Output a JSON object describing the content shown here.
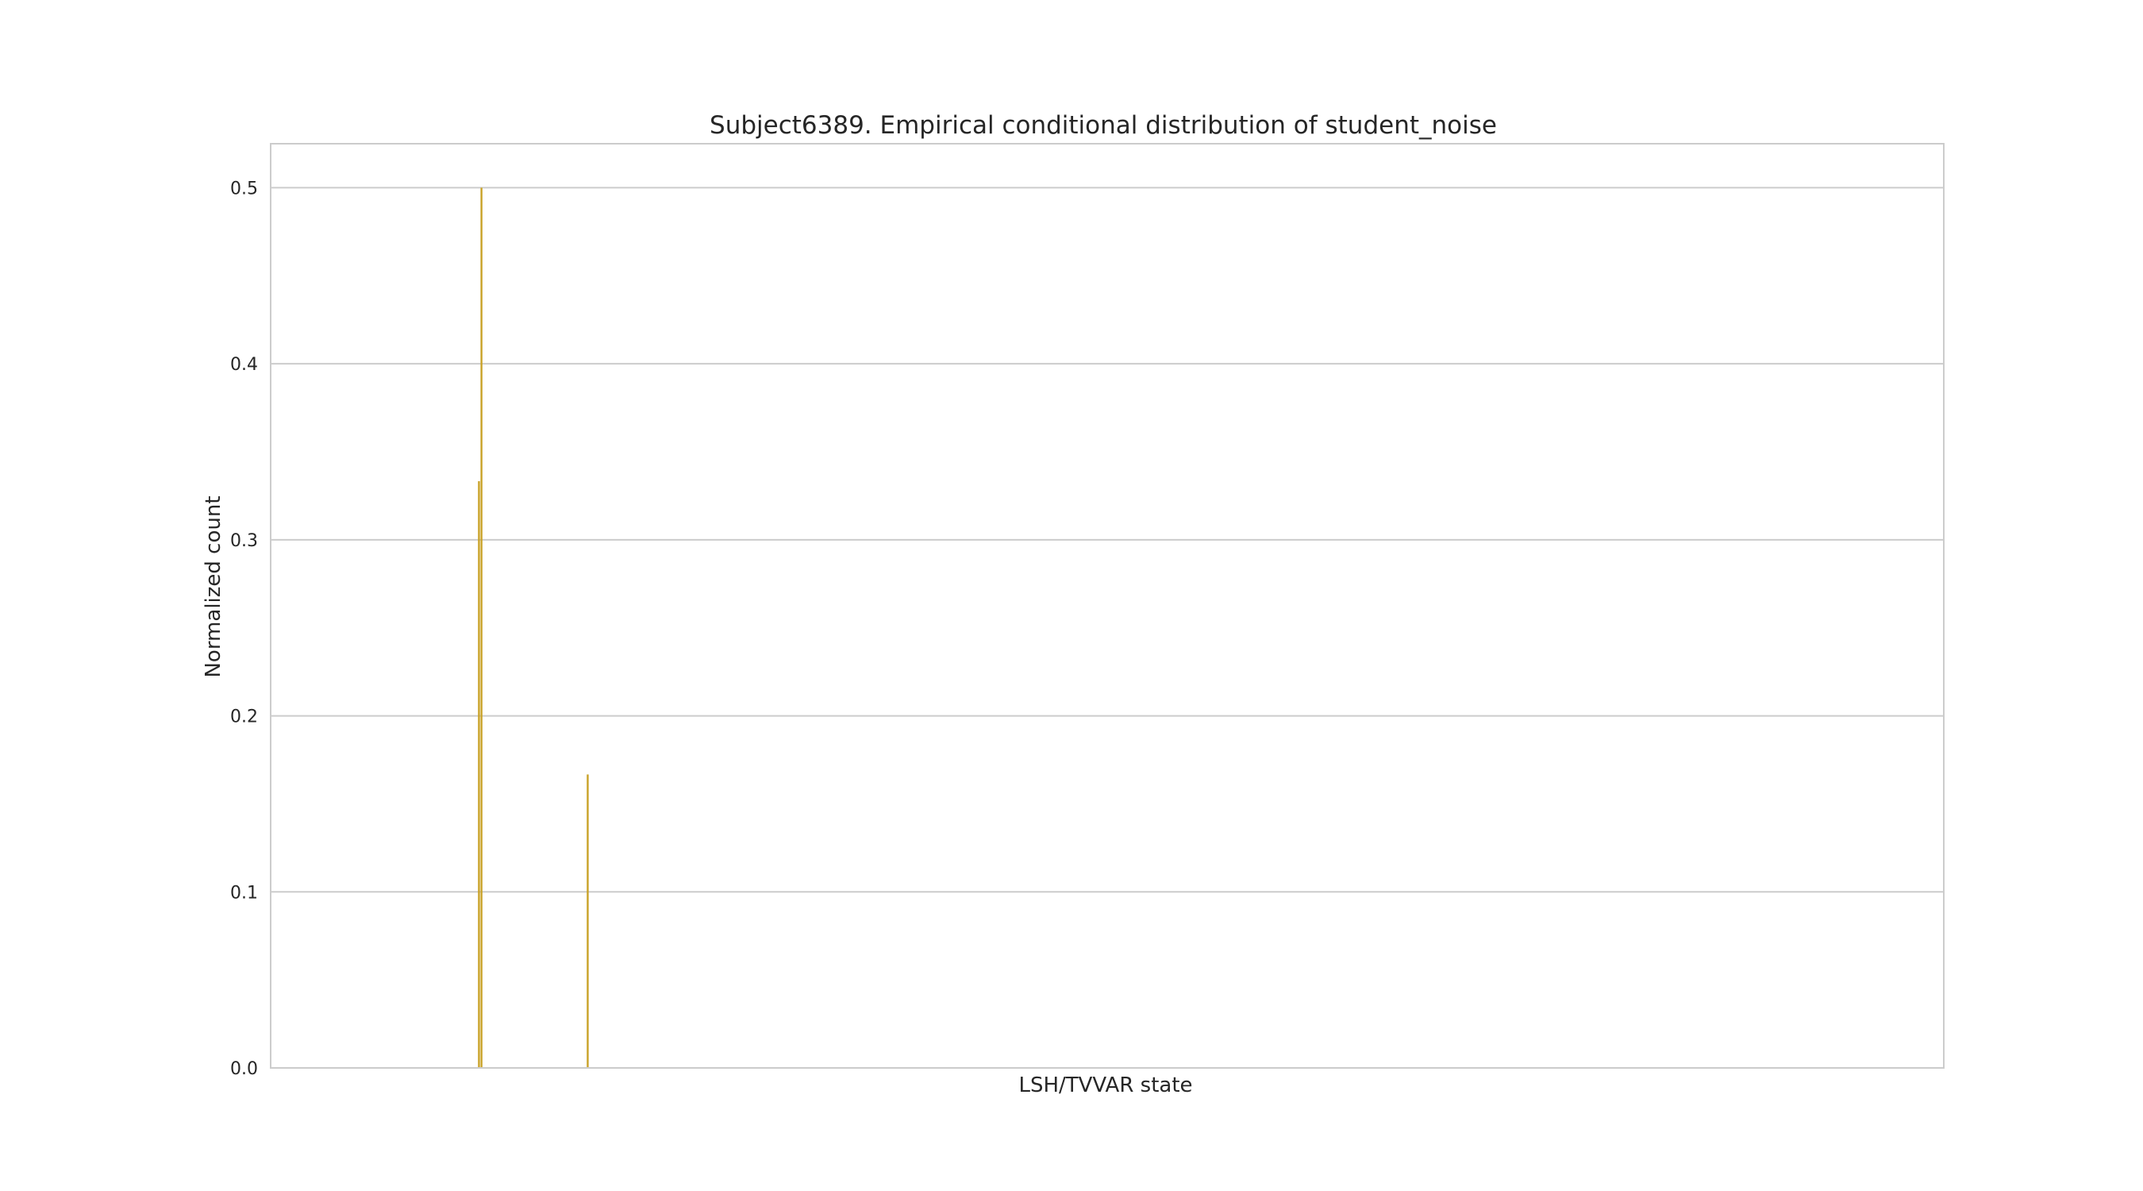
{
  "chart_data": {
    "type": "bar",
    "title": "Subject6389. Empirical conditional distribution of student_noise",
    "xlabel": "LSH/TVVAR state",
    "ylabel": "Normalized count",
    "ylim": [
      0,
      0.525
    ],
    "yticks": [
      "0.0",
      "0.1",
      "0.2",
      "0.3",
      "0.4",
      "0.5"
    ],
    "xlim": [
      0,
      100
    ],
    "grid": true,
    "bar_color": "#c9a227",
    "bars": [
      {
        "x": 12.45,
        "value": 0.3333
      },
      {
        "x": 12.6,
        "value": 0.5
      },
      {
        "x": 18.95,
        "value": 0.1667
      }
    ]
  }
}
